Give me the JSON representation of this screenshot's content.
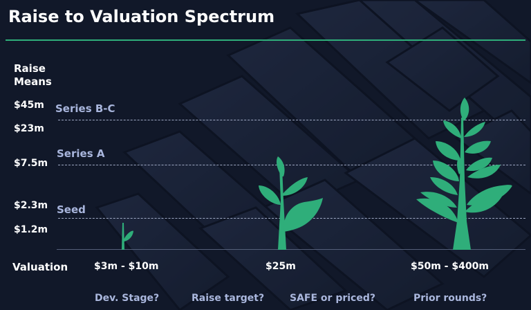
{
  "title": "Raise to Valuation Spectrum",
  "y_axis": {
    "title_line1": "Raise",
    "title_line2": "Means",
    "ticks": [
      "$45m",
      "$23m",
      "$7.5m",
      "$2.3m",
      "$1.2m"
    ]
  },
  "stages": [
    "Series B-C",
    "Series A",
    "Seed"
  ],
  "x_axis": {
    "title": "Valuation",
    "labels": [
      "$3m - $10m",
      "$25m",
      "$50m - $400m"
    ]
  },
  "questions": [
    "Dev. Stage?",
    "Raise target?",
    "SAFE or priced?",
    "Prior rounds?"
  ],
  "colors": {
    "leaf": "#2fae7a",
    "accent_line": "#2fae7a",
    "stage_text": "#a9b6dd",
    "background": "#121a2b"
  },
  "icons": [
    "sprout-icon",
    "young-plant-icon",
    "tree-icon"
  ]
}
